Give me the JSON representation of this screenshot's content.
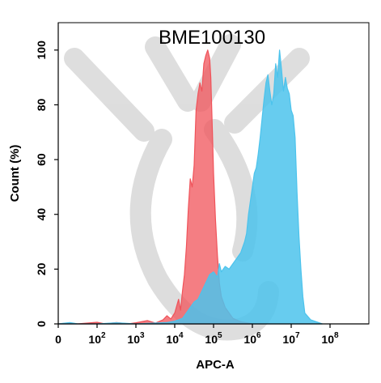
{
  "chart_data": {
    "type": "area",
    "title": "BME100130",
    "xlabel": "APC-A",
    "ylabel": "Count  (%)",
    "xscale": "log",
    "xlim": [
      0,
      8
    ],
    "ylim": [
      0,
      110
    ],
    "xticks": [
      {
        "base": "0",
        "exp": ""
      },
      {
        "base": "10",
        "exp": "2"
      },
      {
        "base": "10",
        "exp": "3"
      },
      {
        "base": "10",
        "exp": "4"
      },
      {
        "base": "10",
        "exp": "5"
      },
      {
        "base": "10",
        "exp": "6"
      },
      {
        "base": "10",
        "exp": "7"
      },
      {
        "base": "10",
        "exp": "8"
      }
    ],
    "yticks": [
      "0",
      "20",
      "40",
      "60",
      "80",
      "100"
    ],
    "grid": false,
    "legend": "none",
    "series": [
      {
        "color": "#f0535a",
        "fill_opacity": 0.75,
        "points": [
          [
            0.0,
            0
          ],
          [
            0.3,
            0.3
          ],
          [
            0.5,
            0
          ],
          [
            1.0,
            0.6
          ],
          [
            1.2,
            0
          ],
          [
            1.5,
            0.5
          ],
          [
            1.8,
            0
          ],
          [
            2.0,
            0.4
          ],
          [
            2.3,
            1.2
          ],
          [
            2.5,
            0.3
          ],
          [
            2.7,
            1.5
          ],
          [
            2.8,
            3
          ],
          [
            2.9,
            1.8
          ],
          [
            3.0,
            4
          ],
          [
            3.1,
            9
          ],
          [
            3.15,
            5
          ],
          [
            3.2,
            12
          ],
          [
            3.25,
            18
          ],
          [
            3.3,
            28
          ],
          [
            3.35,
            42
          ],
          [
            3.4,
            53
          ],
          [
            3.45,
            50
          ],
          [
            3.5,
            58
          ],
          [
            3.55,
            78
          ],
          [
            3.6,
            84
          ],
          [
            3.65,
            88
          ],
          [
            3.7,
            85
          ],
          [
            3.75,
            95
          ],
          [
            3.8,
            98
          ],
          [
            3.85,
            100
          ],
          [
            3.9,
            97
          ],
          [
            3.93,
            90
          ],
          [
            3.97,
            70
          ],
          [
            4.0,
            55
          ],
          [
            4.05,
            38
          ],
          [
            4.1,
            25
          ],
          [
            4.15,
            15
          ],
          [
            4.2,
            10
          ],
          [
            4.3,
            6
          ],
          [
            4.4,
            4
          ],
          [
            4.5,
            2
          ],
          [
            4.7,
            0.8
          ],
          [
            5.0,
            0
          ]
        ]
      },
      {
        "color": "#4cc3ec",
        "fill_opacity": 0.85,
        "points": [
          [
            0.0,
            0
          ],
          [
            0.3,
            0.5
          ],
          [
            0.5,
            0
          ],
          [
            1.0,
            0
          ],
          [
            1.5,
            0.4
          ],
          [
            2.0,
            0
          ],
          [
            2.8,
            0.5
          ],
          [
            3.0,
            1
          ],
          [
            3.2,
            2
          ],
          [
            3.3,
            4
          ],
          [
            3.4,
            6
          ],
          [
            3.5,
            8
          ],
          [
            3.6,
            9
          ],
          [
            3.7,
            12
          ],
          [
            3.8,
            15
          ],
          [
            3.9,
            18
          ],
          [
            4.0,
            19
          ],
          [
            4.1,
            17
          ],
          [
            4.15,
            22
          ],
          [
            4.2,
            19
          ],
          [
            4.3,
            21
          ],
          [
            4.4,
            20
          ],
          [
            4.5,
            22
          ],
          [
            4.6,
            24
          ],
          [
            4.7,
            26
          ],
          [
            4.8,
            30
          ],
          [
            4.85,
            33
          ],
          [
            4.9,
            40
          ],
          [
            4.95,
            45
          ],
          [
            5.0,
            50
          ],
          [
            5.05,
            55
          ],
          [
            5.1,
            57
          ],
          [
            5.15,
            62
          ],
          [
            5.2,
            68
          ],
          [
            5.25,
            75
          ],
          [
            5.3,
            82
          ],
          [
            5.35,
            88
          ],
          [
            5.4,
            91
          ],
          [
            5.45,
            85
          ],
          [
            5.5,
            80
          ],
          [
            5.55,
            84
          ],
          [
            5.6,
            95
          ],
          [
            5.65,
            90
          ],
          [
            5.7,
            100
          ],
          [
            5.75,
            93
          ],
          [
            5.8,
            85
          ],
          [
            5.85,
            90
          ],
          [
            5.9,
            86
          ],
          [
            5.95,
            84
          ],
          [
            6.0,
            78
          ],
          [
            6.05,
            76
          ],
          [
            6.1,
            68
          ],
          [
            6.15,
            48
          ],
          [
            6.2,
            32
          ],
          [
            6.25,
            20
          ],
          [
            6.3,
            10
          ],
          [
            6.35,
            4
          ],
          [
            6.5,
            1.5
          ],
          [
            6.8,
            0
          ]
        ]
      }
    ]
  }
}
